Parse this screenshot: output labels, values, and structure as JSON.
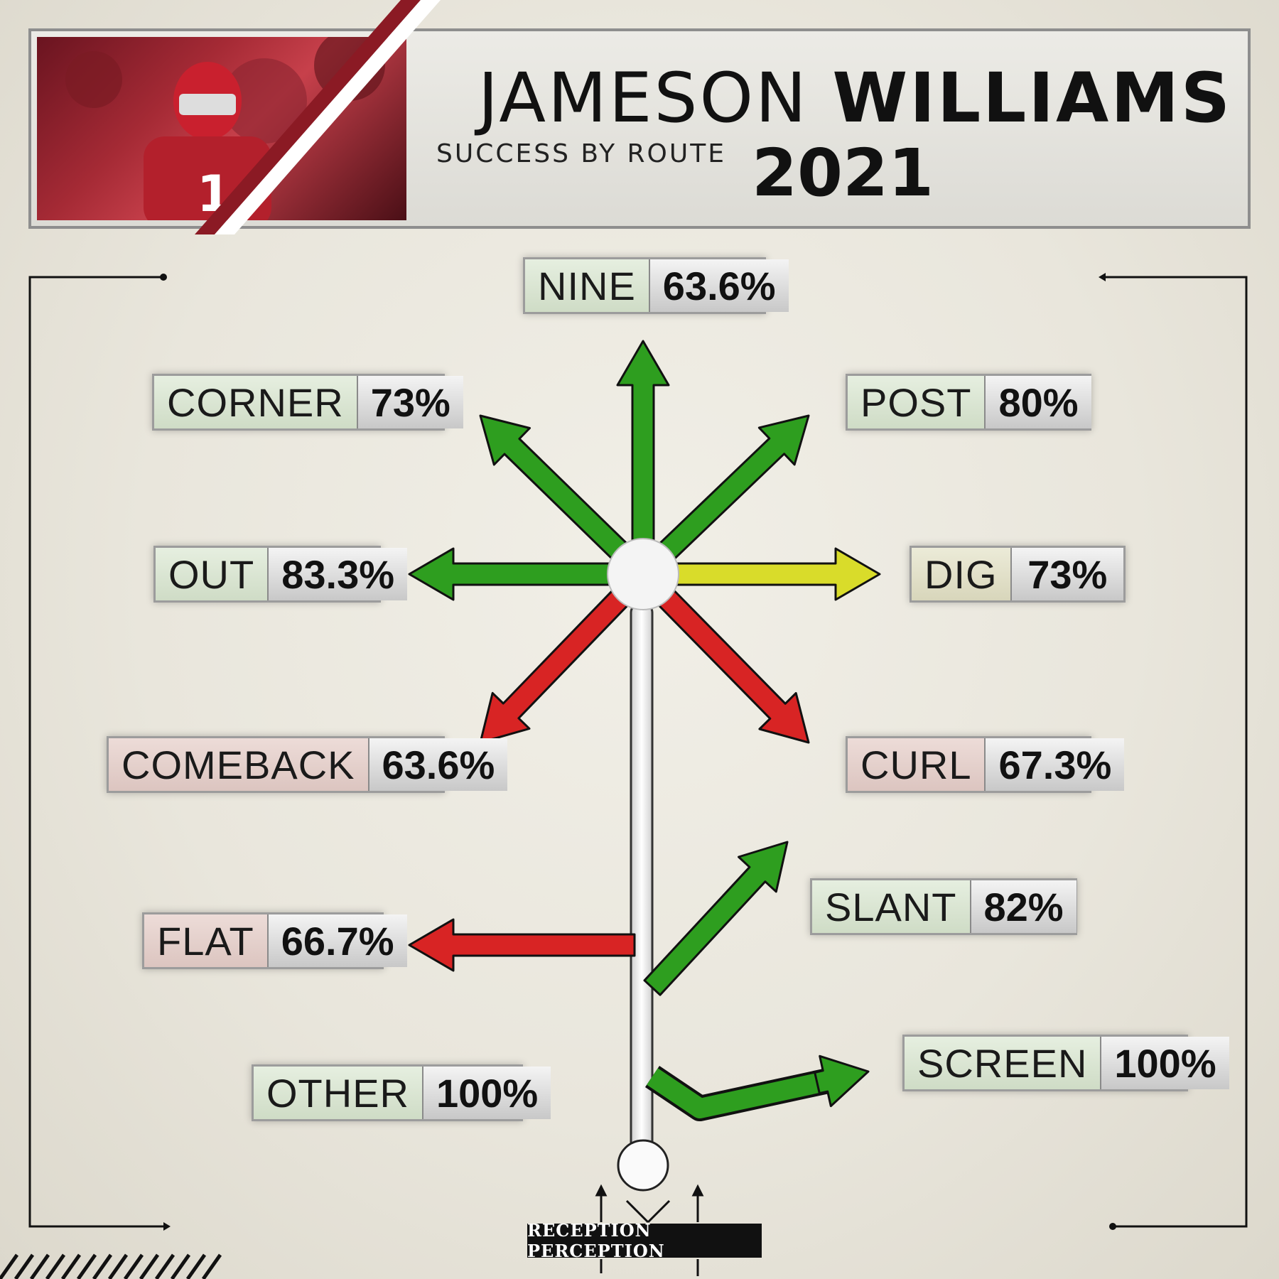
{
  "header": {
    "first_name": "JAMESON",
    "last_name": "WILLIAMS",
    "subtitle": "SUCCESS BY ROUTE",
    "year": "2021"
  },
  "brand": "RECEPTION PERCEPTION",
  "colors": {
    "success_high": "#2e9e1f",
    "success_mid": "#d9dc2a",
    "success_low": "#d82424",
    "stem": "#e7e7e7"
  },
  "chart_data": {
    "type": "route-tree",
    "metric": "Success rate by route (%)",
    "routes": [
      {
        "name": "NINE",
        "value": 63.6,
        "display": "63.6%",
        "color": "green"
      },
      {
        "name": "CORNER",
        "value": 73,
        "display": "73%",
        "color": "green"
      },
      {
        "name": "POST",
        "value": 80,
        "display": "80%",
        "color": "green"
      },
      {
        "name": "OUT",
        "value": 83.3,
        "display": "83.3%",
        "color": "green"
      },
      {
        "name": "DIG",
        "value": 73,
        "display": "73%",
        "color": "yellow"
      },
      {
        "name": "COMEBACK",
        "value": 63.6,
        "display": "63.6%",
        "color": "red"
      },
      {
        "name": "CURL",
        "value": 67.3,
        "display": "67.3%",
        "color": "red"
      },
      {
        "name": "FLAT",
        "value": 66.7,
        "display": "66.7%",
        "color": "red"
      },
      {
        "name": "SLANT",
        "value": 82,
        "display": "82%",
        "color": "green"
      },
      {
        "name": "OTHER",
        "value": 100,
        "display": "100%",
        "color": "green"
      },
      {
        "name": "SCREEN",
        "value": 100,
        "display": "100%",
        "color": "green"
      }
    ]
  }
}
